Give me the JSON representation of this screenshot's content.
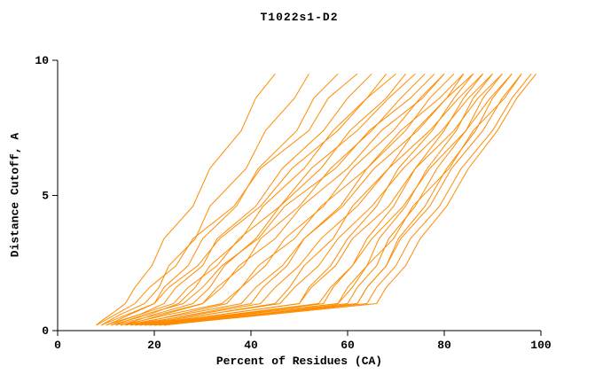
{
  "chart_data": {
    "type": "line",
    "title": "T1022s1-D2",
    "xlabel": "Percent of Residues (CA)",
    "ylabel": "Distance Cutoff, A",
    "xlim": [
      0,
      100
    ],
    "ylim": [
      0,
      10
    ],
    "x_ticks": [
      0,
      20,
      40,
      60,
      80,
      100
    ],
    "y_ticks": [
      0,
      5,
      10
    ],
    "grid": false,
    "legend": "none",
    "line_color": "#ff8c00",
    "curves": [
      [
        [
          8,
          0.2
        ],
        [
          9,
          0.35
        ],
        [
          11,
          0.6
        ],
        [
          14,
          1
        ],
        [
          16,
          1.6
        ],
        [
          19.5,
          2.4
        ],
        [
          22,
          3.4
        ],
        [
          28,
          4.6
        ],
        [
          31.5,
          6
        ],
        [
          38,
          7.4
        ],
        [
          41,
          8.6
        ],
        [
          45,
          9.5
        ]
      ],
      [
        [
          9,
          0.2
        ],
        [
          10.5,
          0.35
        ],
        [
          13,
          0.6
        ],
        [
          18,
          1
        ],
        [
          21,
          1.6
        ],
        [
          23,
          2.4
        ],
        [
          28.5,
          3.4
        ],
        [
          31.5,
          4.6
        ],
        [
          39,
          6
        ],
        [
          43,
          7.4
        ],
        [
          49,
          8.6
        ],
        [
          52,
          9.5
        ]
      ],
      [
        [
          10,
          0.2
        ],
        [
          12,
          0.35
        ],
        [
          15,
          0.6
        ],
        [
          20,
          1
        ],
        [
          22,
          1.6
        ],
        [
          27,
          2.4
        ],
        [
          30,
          3.4
        ],
        [
          37,
          4.6
        ],
        [
          41.5,
          6
        ],
        [
          49.5,
          7.4
        ],
        [
          53,
          8.6
        ],
        [
          58,
          9.5
        ]
      ],
      [
        [
          8,
          0.2
        ],
        [
          9.5,
          0.35
        ],
        [
          12,
          0.6
        ],
        [
          16,
          1
        ],
        [
          19,
          1.6
        ],
        [
          24.5,
          2.4
        ],
        [
          28,
          3.4
        ],
        [
          36.5,
          4.6
        ],
        [
          42,
          6
        ],
        [
          52,
          7.4
        ],
        [
          56,
          8.6
        ],
        [
          62,
          9.5
        ]
      ],
      [
        [
          11,
          0.2
        ],
        [
          13,
          0.35
        ],
        [
          17,
          0.6
        ],
        [
          22,
          1
        ],
        [
          24.5,
          1.6
        ],
        [
          30,
          2.4
        ],
        [
          33,
          3.4
        ],
        [
          41,
          4.6
        ],
        [
          46.5,
          6
        ],
        [
          55,
          7.4
        ],
        [
          60,
          8.6
        ],
        [
          65,
          9.5
        ]
      ],
      [
        [
          12,
          0.2
        ],
        [
          14,
          0.35
        ],
        [
          19,
          0.6
        ],
        [
          25,
          1
        ],
        [
          28.5,
          1.6
        ],
        [
          31.5,
          2.4
        ],
        [
          38,
          3.4
        ],
        [
          42.5,
          4.6
        ],
        [
          51,
          6
        ],
        [
          57,
          7.4
        ],
        [
          64,
          8.6
        ],
        [
          68,
          9.5
        ]
      ],
      [
        [
          9,
          0.2
        ],
        [
          11,
          0.35
        ],
        [
          14.5,
          0.6
        ],
        [
          20,
          1
        ],
        [
          23,
          1.6
        ],
        [
          29,
          2.4
        ],
        [
          33.5,
          3.4
        ],
        [
          42,
          4.6
        ],
        [
          48.5,
          6
        ],
        [
          58,
          7.4
        ],
        [
          64,
          8.6
        ],
        [
          70,
          9.5
        ]
      ],
      [
        [
          13,
          0.2
        ],
        [
          16,
          0.35
        ],
        [
          20,
          0.6
        ],
        [
          28,
          1
        ],
        [
          31.5,
          1.6
        ],
        [
          34.5,
          2.4
        ],
        [
          41,
          3.4
        ],
        [
          46,
          4.6
        ],
        [
          54.5,
          6
        ],
        [
          60.5,
          7.4
        ],
        [
          68,
          8.6
        ],
        [
          72,
          9.5
        ]
      ],
      [
        [
          10,
          0.2
        ],
        [
          12.5,
          0.35
        ],
        [
          17,
          0.6
        ],
        [
          24,
          1
        ],
        [
          27,
          1.6
        ],
        [
          33,
          2.4
        ],
        [
          37.5,
          3.4
        ],
        [
          46,
          4.6
        ],
        [
          52.5,
          6
        ],
        [
          62,
          7.4
        ],
        [
          68.5,
          8.6
        ],
        [
          74,
          9.5
        ]
      ],
      [
        [
          14,
          0.2
        ],
        [
          17,
          0.35
        ],
        [
          22,
          0.6
        ],
        [
          30,
          1
        ],
        [
          33,
          1.6
        ],
        [
          38.5,
          2.4
        ],
        [
          42,
          3.4
        ],
        [
          50,
          4.6
        ],
        [
          56.5,
          6
        ],
        [
          65,
          7.4
        ],
        [
          71,
          8.6
        ],
        [
          76,
          9.5
        ]
      ],
      [
        [
          11,
          0.2
        ],
        [
          14,
          0.35
        ],
        [
          18,
          0.6
        ],
        [
          26,
          1
        ],
        [
          30,
          1.6
        ],
        [
          34,
          2.4
        ],
        [
          41.5,
          3.4
        ],
        [
          47,
          4.6
        ],
        [
          57.5,
          6
        ],
        [
          64.5,
          7.4
        ],
        [
          73,
          8.6
        ],
        [
          78,
          9.5
        ]
      ],
      [
        [
          15,
          0.2
        ],
        [
          19,
          0.35
        ],
        [
          25,
          0.6
        ],
        [
          35,
          1
        ],
        [
          38,
          1.6
        ],
        [
          43,
          2.4
        ],
        [
          47,
          3.4
        ],
        [
          55,
          4.6
        ],
        [
          61,
          6
        ],
        [
          69.5,
          7.4
        ],
        [
          75,
          8.6
        ],
        [
          80,
          9.5
        ]
      ],
      [
        [
          12,
          0.2
        ],
        [
          15,
          0.35
        ],
        [
          21,
          0.6
        ],
        [
          30,
          1
        ],
        [
          34,
          1.6
        ],
        [
          37.5,
          2.4
        ],
        [
          45,
          3.4
        ],
        [
          50.5,
          4.6
        ],
        [
          60,
          6
        ],
        [
          67,
          7.4
        ],
        [
          75.5,
          8.6
        ],
        [
          80,
          9.5
        ]
      ],
      [
        [
          16,
          0.2
        ],
        [
          20.5,
          0.35
        ],
        [
          28,
          0.6
        ],
        [
          40,
          1
        ],
        [
          42.5,
          1.6
        ],
        [
          47.5,
          2.4
        ],
        [
          51,
          3.4
        ],
        [
          58.5,
          4.6
        ],
        [
          64,
          6
        ],
        [
          72,
          7.4
        ],
        [
          77,
          8.6
        ],
        [
          82,
          9.5
        ]
      ],
      [
        [
          13,
          0.2
        ],
        [
          17,
          0.35
        ],
        [
          23,
          0.6
        ],
        [
          34,
          1
        ],
        [
          38,
          1.6
        ],
        [
          41.5,
          2.4
        ],
        [
          49,
          3.4
        ],
        [
          54.5,
          4.6
        ],
        [
          64,
          6
        ],
        [
          71,
          7.4
        ],
        [
          79,
          8.6
        ],
        [
          84,
          9.5
        ]
      ],
      [
        [
          17,
          0.2
        ],
        [
          22,
          0.35
        ],
        [
          31,
          0.6
        ],
        [
          45,
          1
        ],
        [
          48,
          1.6
        ],
        [
          51,
          2.4
        ],
        [
          57,
          3.4
        ],
        [
          61,
          4.6
        ],
        [
          68.5,
          6
        ],
        [
          74,
          7.4
        ],
        [
          80.5,
          8.6
        ],
        [
          84,
          9.5
        ]
      ],
      [
        [
          14,
          0.2
        ],
        [
          18.5,
          0.35
        ],
        [
          26,
          0.6
        ],
        [
          38,
          1
        ],
        [
          41,
          1.6
        ],
        [
          46.5,
          2.4
        ],
        [
          51,
          3.4
        ],
        [
          59,
          4.6
        ],
        [
          65.5,
          6
        ],
        [
          74.5,
          7.4
        ],
        [
          80.5,
          8.6
        ],
        [
          86,
          9.5
        ]
      ],
      [
        [
          18,
          0.2
        ],
        [
          24,
          0.35
        ],
        [
          34,
          0.6
        ],
        [
          50,
          1
        ],
        [
          52,
          1.6
        ],
        [
          56.5,
          2.4
        ],
        [
          60,
          3.4
        ],
        [
          66,
          4.6
        ],
        [
          70.5,
          6
        ],
        [
          77.5,
          7.4
        ],
        [
          82,
          8.6
        ],
        [
          86,
          9.5
        ]
      ],
      [
        [
          15,
          0.2
        ],
        [
          20,
          0.35
        ],
        [
          29,
          0.6
        ],
        [
          42,
          1
        ],
        [
          45,
          1.6
        ],
        [
          50,
          2.4
        ],
        [
          54.5,
          3.4
        ],
        [
          62,
          4.6
        ],
        [
          68.5,
          6
        ],
        [
          77,
          7.4
        ],
        [
          83,
          8.6
        ],
        [
          88,
          9.5
        ]
      ],
      [
        [
          19,
          0.2
        ],
        [
          26,
          0.35
        ],
        [
          37,
          0.6
        ],
        [
          55,
          1
        ],
        [
          57,
          1.6
        ],
        [
          61,
          2.4
        ],
        [
          64,
          3.4
        ],
        [
          69.5,
          4.6
        ],
        [
          74,
          6
        ],
        [
          80,
          7.4
        ],
        [
          84,
          8.6
        ],
        [
          88,
          9.5
        ]
      ],
      [
        [
          16,
          0.2
        ],
        [
          21.5,
          0.35
        ],
        [
          31,
          0.6
        ],
        [
          46,
          1
        ],
        [
          49,
          1.6
        ],
        [
          54,
          2.4
        ],
        [
          58,
          3.4
        ],
        [
          65,
          4.6
        ],
        [
          71.5,
          6
        ],
        [
          79.5,
          7.4
        ],
        [
          85,
          8.6
        ],
        [
          90,
          9.5
        ]
      ],
      [
        [
          20,
          0.2
        ],
        [
          27,
          0.35
        ],
        [
          39,
          0.6
        ],
        [
          58,
          1
        ],
        [
          60,
          1.6
        ],
        [
          64,
          2.4
        ],
        [
          66.5,
          3.4
        ],
        [
          72,
          4.6
        ],
        [
          76.5,
          6
        ],
        [
          82.5,
          7.4
        ],
        [
          86,
          8.6
        ],
        [
          90,
          9.5
        ]
      ],
      [
        [
          17,
          0.2
        ],
        [
          23,
          0.35
        ],
        [
          34,
          0.6
        ],
        [
          50,
          1
        ],
        [
          52.5,
          1.6
        ],
        [
          57.5,
          2.4
        ],
        [
          61,
          3.4
        ],
        [
          68.5,
          4.6
        ],
        [
          74,
          6
        ],
        [
          82,
          7.4
        ],
        [
          87,
          8.6
        ],
        [
          92,
          9.5
        ]
      ],
      [
        [
          21,
          0.2
        ],
        [
          28,
          0.35
        ],
        [
          41,
          0.6
        ],
        [
          60,
          1
        ],
        [
          62,
          1.6
        ],
        [
          66,
          2.4
        ],
        [
          68.5,
          3.4
        ],
        [
          74,
          4.6
        ],
        [
          78.5,
          6
        ],
        [
          84.5,
          7.4
        ],
        [
          88,
          8.6
        ],
        [
          92,
          9.5
        ]
      ],
      [
        [
          18,
          0.2
        ],
        [
          25,
          0.35
        ],
        [
          36,
          0.6
        ],
        [
          54,
          1
        ],
        [
          56.5,
          1.6
        ],
        [
          61,
          2.4
        ],
        [
          65,
          3.4
        ],
        [
          71.5,
          4.6
        ],
        [
          77,
          6
        ],
        [
          84.5,
          7.4
        ],
        [
          89.5,
          8.6
        ],
        [
          94,
          9.5
        ]
      ],
      [
        [
          22,
          0.2
        ],
        [
          29.5,
          0.35
        ],
        [
          42,
          0.6
        ],
        [
          62,
          1
        ],
        [
          64,
          1.6
        ],
        [
          68,
          2.4
        ],
        [
          70.5,
          3.4
        ],
        [
          76,
          4.6
        ],
        [
          80.5,
          6
        ],
        [
          86.5,
          7.4
        ],
        [
          90,
          8.6
        ],
        [
          94,
          9.5
        ]
      ],
      [
        [
          19,
          0.2
        ],
        [
          26,
          0.35
        ],
        [
          38,
          0.6
        ],
        [
          58,
          1
        ],
        [
          61,
          1.6
        ],
        [
          64,
          2.4
        ],
        [
          69.5,
          3.4
        ],
        [
          73.5,
          4.6
        ],
        [
          81,
          6
        ],
        [
          86,
          7.4
        ],
        [
          92.5,
          8.6
        ],
        [
          96,
          9.5
        ]
      ],
      [
        [
          20,
          0.2
        ],
        [
          28,
          0.35
        ],
        [
          41,
          0.6
        ],
        [
          62,
          1
        ],
        [
          64,
          1.6
        ],
        [
          68,
          2.4
        ],
        [
          71,
          3.4
        ],
        [
          77,
          4.6
        ],
        [
          81.5,
          6
        ],
        [
          88,
          7.4
        ],
        [
          92,
          8.6
        ],
        [
          96,
          9.5
        ]
      ],
      [
        [
          21,
          0.2
        ],
        [
          29,
          0.35
        ],
        [
          42.5,
          0.6
        ],
        [
          64,
          1
        ],
        [
          66,
          1.6
        ],
        [
          70,
          2.4
        ],
        [
          73,
          3.4
        ],
        [
          79,
          4.6
        ],
        [
          83.5,
          6
        ],
        [
          90,
          7.4
        ],
        [
          94,
          8.6
        ],
        [
          98,
          9.5
        ]
      ],
      [
        [
          22,
          0.2
        ],
        [
          30,
          0.35
        ],
        [
          44,
          0.6
        ],
        [
          66,
          1
        ],
        [
          68,
          1.6
        ],
        [
          72,
          2.4
        ],
        [
          75,
          3.4
        ],
        [
          80.5,
          4.6
        ],
        [
          85,
          6
        ],
        [
          91,
          7.4
        ],
        [
          95,
          8.6
        ],
        [
          99,
          9.5
        ]
      ]
    ]
  }
}
